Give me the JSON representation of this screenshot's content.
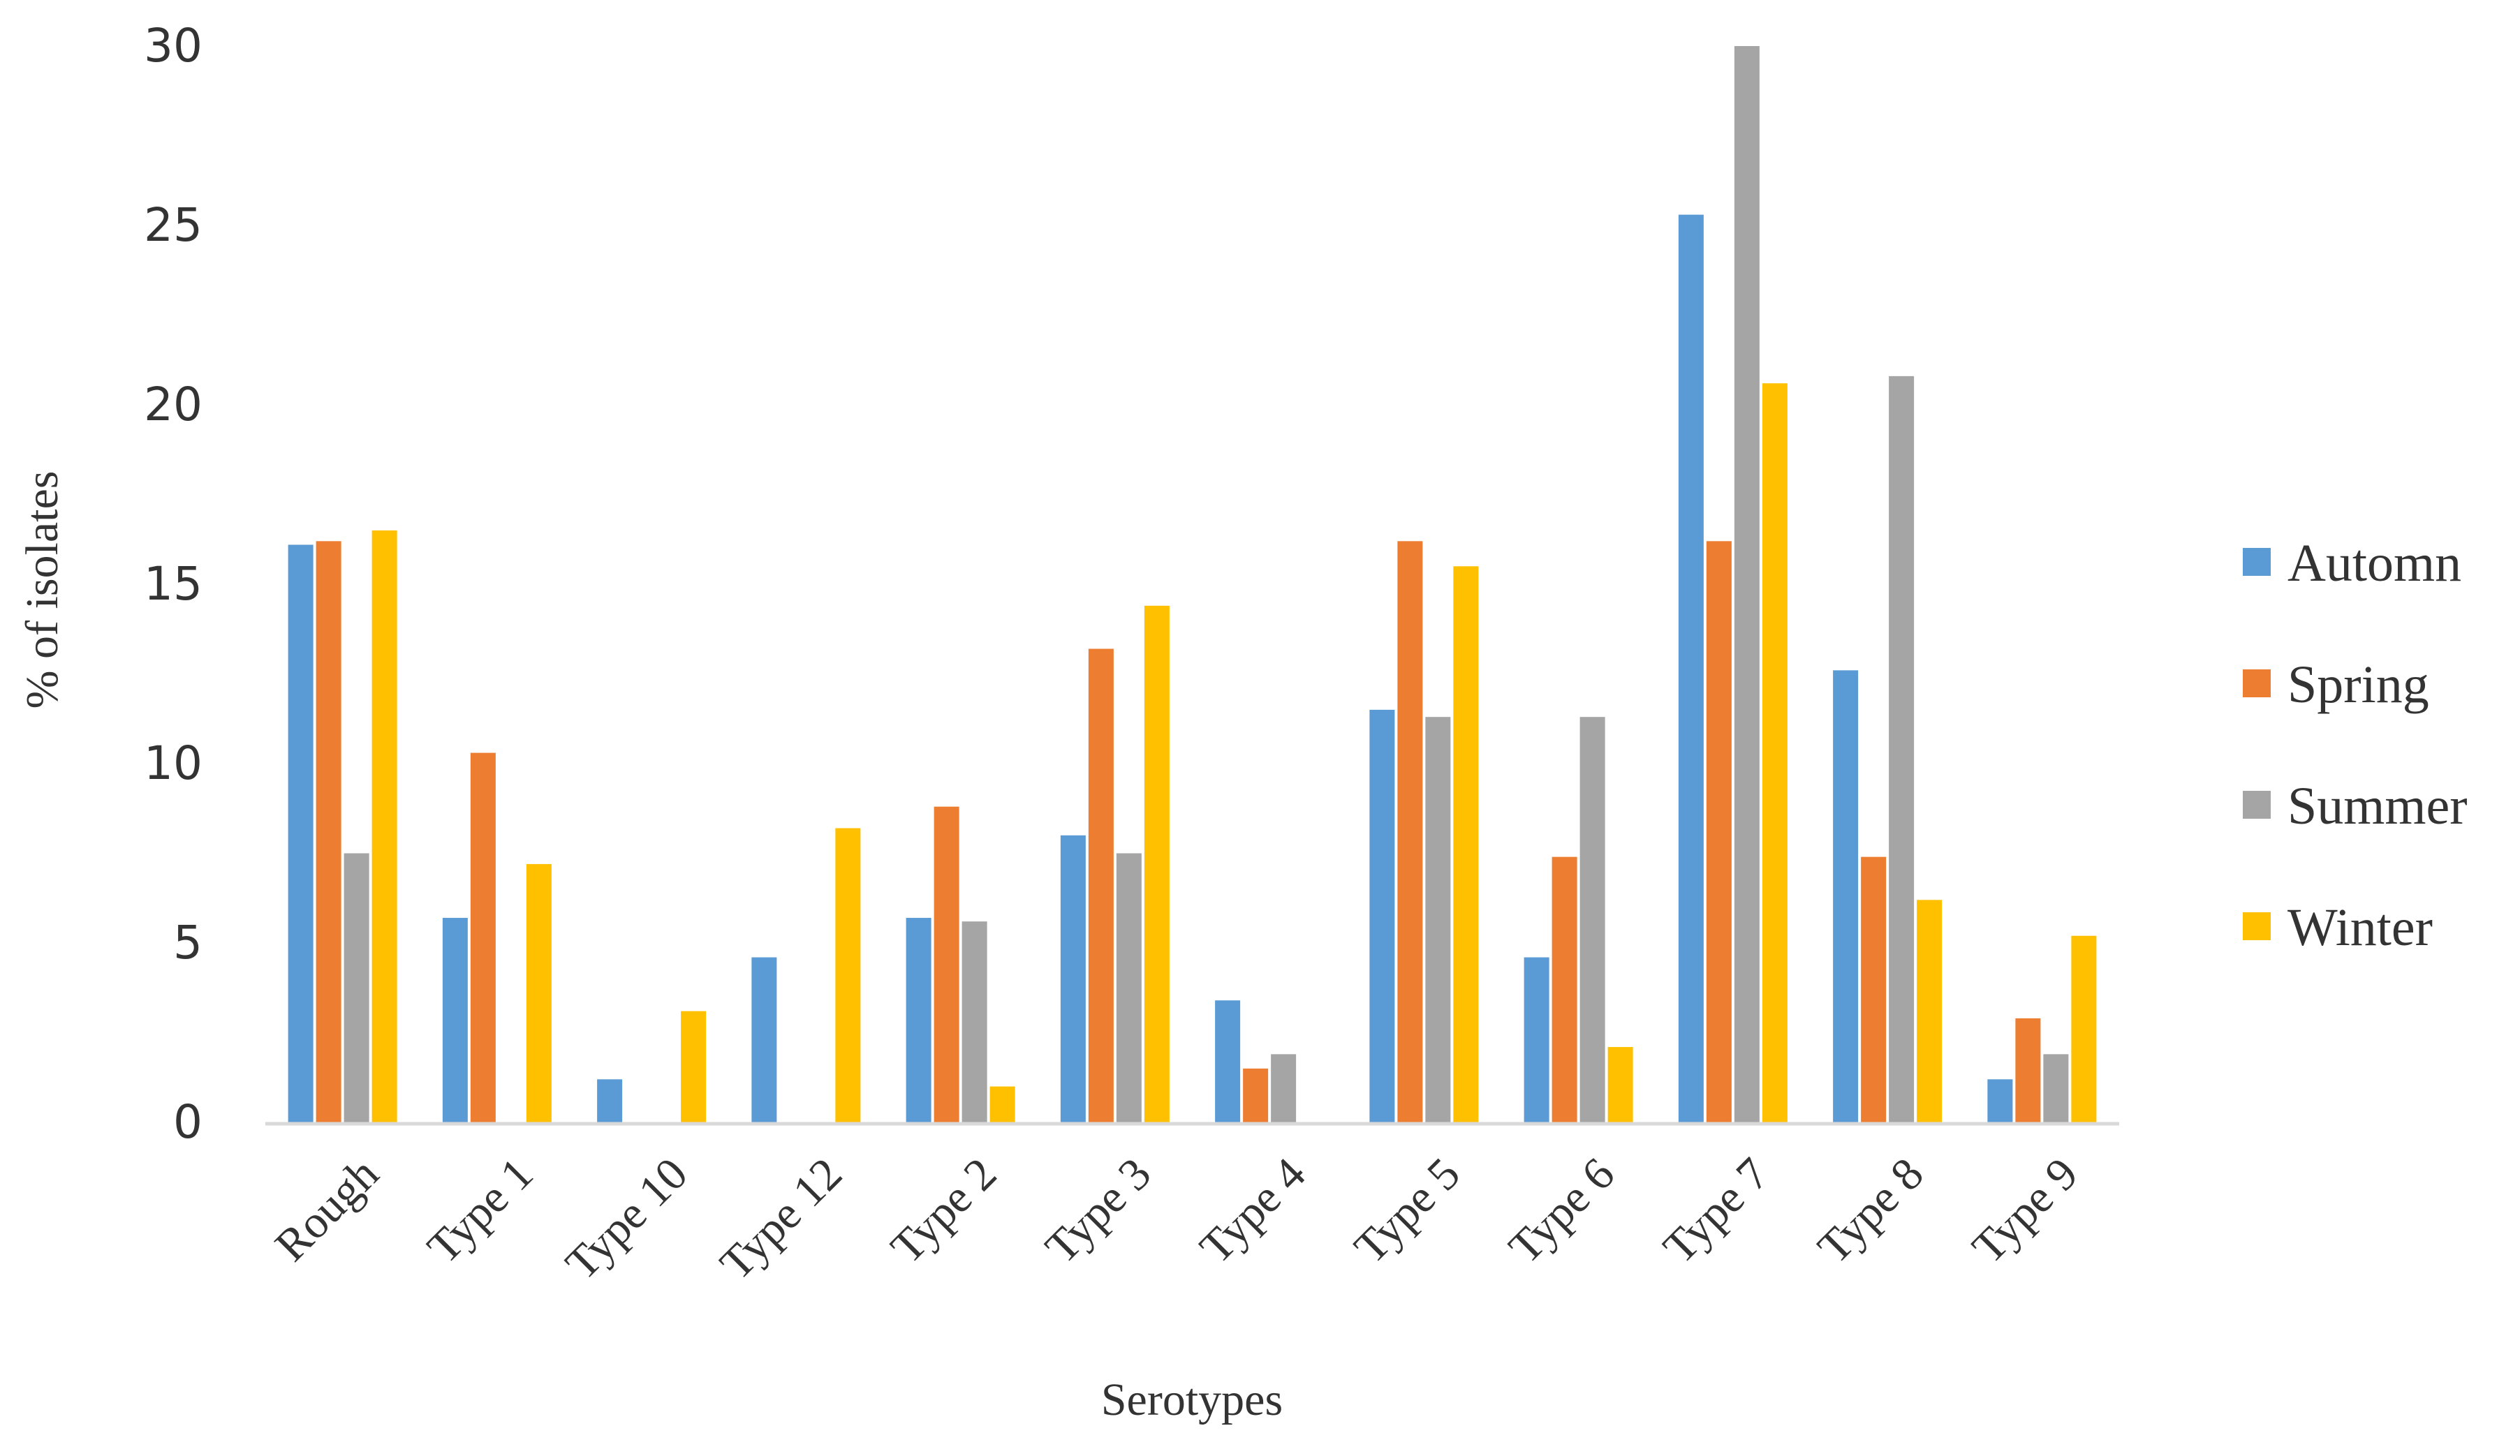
{
  "chart_data": {
    "type": "bar",
    "title": "",
    "xlabel": "Serotypes",
    "ylabel": "% of isolates",
    "ylim": [
      0,
      30
    ],
    "yticks": [
      0,
      5,
      10,
      15,
      20,
      25,
      30
    ],
    "ytick_labels": [
      "0",
      "5",
      "10",
      "15",
      "20",
      "25",
      "30"
    ],
    "grid": false,
    "legend_position": "right",
    "categories": [
      "Rough",
      "Type 1",
      "Type 10",
      "Type 12",
      "Type 2",
      "Type 3",
      "Type 4",
      "Type 5",
      "Type 6",
      "Type 7",
      "Type 8",
      "Type 9"
    ],
    "series": [
      {
        "name": "Automn",
        "color": "#5B9BD5",
        "values": [
          16.1,
          5.7,
          1.2,
          4.6,
          5.7,
          8.0,
          3.4,
          11.5,
          4.6,
          25.3,
          12.6,
          1.2
        ]
      },
      {
        "name": "Spring",
        "color": "#ED7D31",
        "values": [
          16.2,
          10.3,
          0,
          0,
          8.8,
          13.2,
          1.5,
          16.2,
          7.4,
          16.2,
          7.4,
          2.9
        ]
      },
      {
        "name": "Summer",
        "color": "#A5A5A5",
        "values": [
          7.5,
          0,
          0,
          0,
          5.6,
          7.5,
          1.9,
          11.3,
          11.3,
          30.0,
          20.8,
          1.9
        ]
      },
      {
        "name": "Winter",
        "color": "#FFC000",
        "values": [
          16.5,
          7.2,
          3.1,
          8.2,
          1.0,
          14.4,
          0,
          15.5,
          2.1,
          20.6,
          6.2,
          5.2
        ]
      }
    ]
  }
}
